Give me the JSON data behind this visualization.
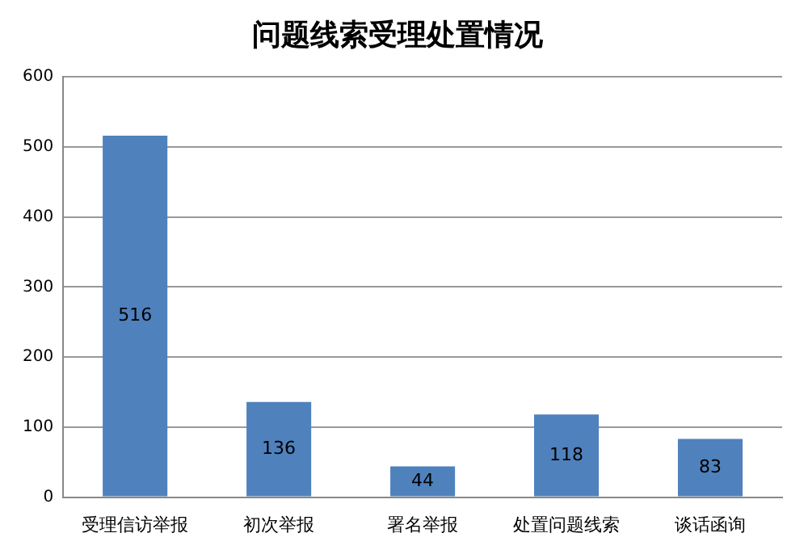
{
  "chart_data": {
    "type": "bar",
    "title": "问题线索受理处置情况",
    "categories": [
      "受理信访举报",
      "初次举报",
      "署名举报",
      "处置问题线索",
      "谈话函询"
    ],
    "values": [
      516,
      136,
      44,
      118,
      83
    ],
    "color": "#4f81bd",
    "ylim": [
      0,
      600
    ],
    "yticks": [
      0,
      100,
      200,
      300,
      400,
      500,
      600
    ],
    "grid": "y",
    "legend": false,
    "data_labels": true
  }
}
